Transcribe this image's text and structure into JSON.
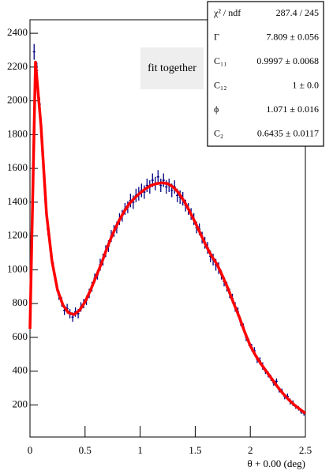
{
  "chart_data": {
    "type": "errorbar",
    "x_label": "θ + 0.00 (deg)",
    "xlim": [
      0,
      2.5
    ],
    "ylim": [
      10,
      2480
    ],
    "xticks": [
      0,
      0.5,
      1,
      1.5,
      2,
      2.5
    ],
    "yticks": [
      200,
      400,
      600,
      800,
      1000,
      1200,
      1400,
      1600,
      1800,
      2000,
      2200,
      2400
    ],
    "series": [
      {
        "color": "#000080",
        "x": [
          0.0125,
          0.0375,
          0.0625,
          0.0875,
          0.1125,
          0.1375,
          0.1625,
          0.1875,
          0.2125,
          0.2375,
          0.2625,
          0.2875,
          0.3125,
          0.3375,
          0.3625,
          0.3875,
          0.4125,
          0.4375,
          0.4625,
          0.4875,
          0.5125,
          0.5375,
          0.5625,
          0.5875,
          0.6125,
          0.6375,
          0.6625,
          0.6875,
          0.7125,
          0.7375,
          0.7625,
          0.7875,
          0.8125,
          0.8375,
          0.8625,
          0.8875,
          0.9125,
          0.9375,
          0.9625,
          0.9875,
          1.0125,
          1.0375,
          1.0625,
          1.0875,
          1.1125,
          1.1375,
          1.1625,
          1.1875,
          1.2125,
          1.2375,
          1.2625,
          1.2875,
          1.3125,
          1.3375,
          1.3625,
          1.3875,
          1.4125,
          1.4375,
          1.4625,
          1.4875,
          1.5125,
          1.5375,
          1.5625,
          1.5875,
          1.6125,
          1.6375,
          1.6625,
          1.6875,
          1.7125,
          1.7375,
          1.7625,
          1.7875,
          1.8125,
          1.8375,
          1.8625,
          1.8875,
          1.9125,
          1.9375,
          1.9625,
          1.9875,
          2.0125,
          2.0375,
          2.0625,
          2.0875,
          2.1125,
          2.1375,
          2.1625,
          2.1875,
          2.2125,
          2.2375,
          2.2625,
          2.2875,
          2.3125,
          2.3375,
          2.3625,
          2.3875,
          2.4125,
          2.4375,
          2.4625,
          2.4875
        ],
        "values": [
          1150,
          2290,
          2180,
          1980,
          1720,
          1450,
          1240,
          1110,
          1010,
          920,
          850,
          810,
          760,
          770,
          740,
          720,
          750,
          740,
          780,
          800,
          820,
          860,
          900,
          950,
          970,
          1030,
          1060,
          1110,
          1140,
          1200,
          1230,
          1250,
          1300,
          1320,
          1360,
          1370,
          1410,
          1400,
          1440,
          1450,
          1470,
          1460,
          1500,
          1490,
          1530,
          1510,
          1550,
          1500,
          1530,
          1490,
          1500,
          1470,
          1490,
          1440,
          1430,
          1420,
          1380,
          1360,
          1330,
          1300,
          1250,
          1240,
          1190,
          1160,
          1130,
          1080,
          1060,
          1030,
          1010,
          970,
          930,
          900,
          860,
          830,
          780,
          750,
          690,
          660,
          600,
          570,
          540,
          520,
          470,
          460,
          430,
          400,
          380,
          360,
          330,
          340,
          290,
          280,
          250,
          250,
          220,
          210,
          190,
          180,
          160,
          150
        ],
        "errors": [
          35,
          47,
          47,
          40,
          40,
          40,
          35,
          35,
          35,
          28,
          28,
          28,
          28,
          28,
          28,
          28,
          28,
          28,
          28,
          28,
          28,
          28,
          28,
          28,
          28,
          35,
          35,
          35,
          35,
          35,
          35,
          35,
          35,
          35,
          35,
          35,
          40,
          40,
          40,
          40,
          40,
          40,
          40,
          40,
          40,
          40,
          40,
          40,
          40,
          40,
          40,
          40,
          40,
          40,
          40,
          40,
          35,
          35,
          35,
          35,
          35,
          35,
          35,
          35,
          35,
          35,
          35,
          35,
          35,
          28,
          28,
          28,
          28,
          28,
          28,
          28,
          22,
          22,
          22,
          22,
          22,
          22,
          22,
          22,
          22,
          17,
          17,
          17,
          17,
          17,
          17,
          17,
          17,
          17,
          17,
          17,
          13,
          13,
          13,
          13
        ]
      },
      {
        "name": "fit together",
        "color": "#ff0000",
        "x": [
          0,
          0.05,
          0.1,
          0.15,
          0.2,
          0.25,
          0.3,
          0.35,
          0.4,
          0.45,
          0.5,
          0.55,
          0.6,
          0.65,
          0.7,
          0.75,
          0.8,
          0.85,
          0.9,
          0.95,
          1,
          1.05,
          1.1,
          1.15,
          1.2,
          1.25,
          1.3,
          1.35,
          1.4,
          1.45,
          1.5,
          1.55,
          1.6,
          1.65,
          1.7,
          1.75,
          1.8,
          1.85,
          1.9,
          1.95,
          2,
          2.05,
          2.1,
          2.15,
          2.2,
          2.25,
          2.3,
          2.35,
          2.4,
          2.45,
          2.5
        ],
        "values": [
          650,
          2230,
          1850,
          1330,
          1050,
          880,
          790,
          745,
          735,
          760,
          810,
          880,
          960,
          1040,
          1130,
          1210,
          1280,
          1340,
          1390,
          1425,
          1455,
          1480,
          1500,
          1510,
          1515,
          1510,
          1490,
          1455,
          1405,
          1345,
          1280,
          1210,
          1140,
          1080,
          1030,
          960,
          885,
          800,
          720,
          630,
          550,
          490,
          440,
          395,
          350,
          305,
          265,
          230,
          200,
          175,
          150
        ]
      }
    ],
    "stats": [
      {
        "label": "χ² / ndf",
        "value": "287.4 / 245"
      },
      {
        "label": "Γ",
        "value": "7.809 ± 0.056"
      },
      {
        "label": "C₁₁",
        "value": "0.9997 ± 0.0068"
      },
      {
        "label": "C₁₂",
        "value": "1 ± 0.0"
      },
      {
        "label": "ϕ",
        "value": "1.071 ± 0.016"
      },
      {
        "label": "C₂",
        "value": "0.6435 ± 0.0117"
      }
    ]
  }
}
